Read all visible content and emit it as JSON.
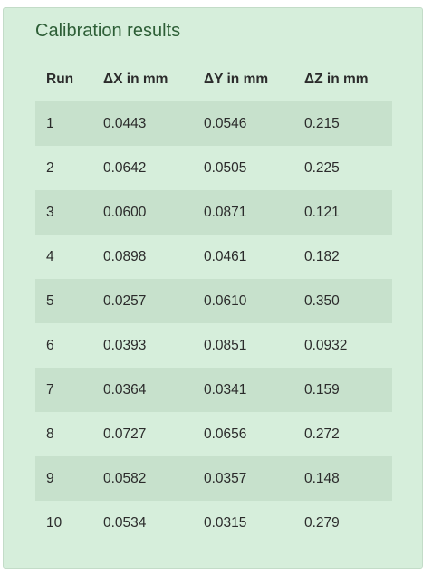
{
  "title": "Calibration results",
  "table": {
    "headers": [
      "Run",
      "ΔX in mm",
      "ΔY in mm",
      "ΔZ in mm"
    ],
    "rows": [
      [
        "1",
        "0.0443",
        "0.0546",
        "0.215"
      ],
      [
        "2",
        "0.0642",
        "0.0505",
        "0.225"
      ],
      [
        "3",
        "0.0600",
        "0.0871",
        "0.121"
      ],
      [
        "4",
        "0.0898",
        "0.0461",
        "0.182"
      ],
      [
        "5",
        "0.0257",
        "0.0610",
        "0.350"
      ],
      [
        "6",
        "0.0393",
        "0.0851",
        "0.0932"
      ],
      [
        "7",
        "0.0364",
        "0.0341",
        "0.159"
      ],
      [
        "8",
        "0.0727",
        "0.0656",
        "0.272"
      ],
      [
        "9",
        "0.0582",
        "0.0357",
        "0.148"
      ],
      [
        "10",
        "0.0534",
        "0.0315",
        "0.279"
      ]
    ]
  }
}
